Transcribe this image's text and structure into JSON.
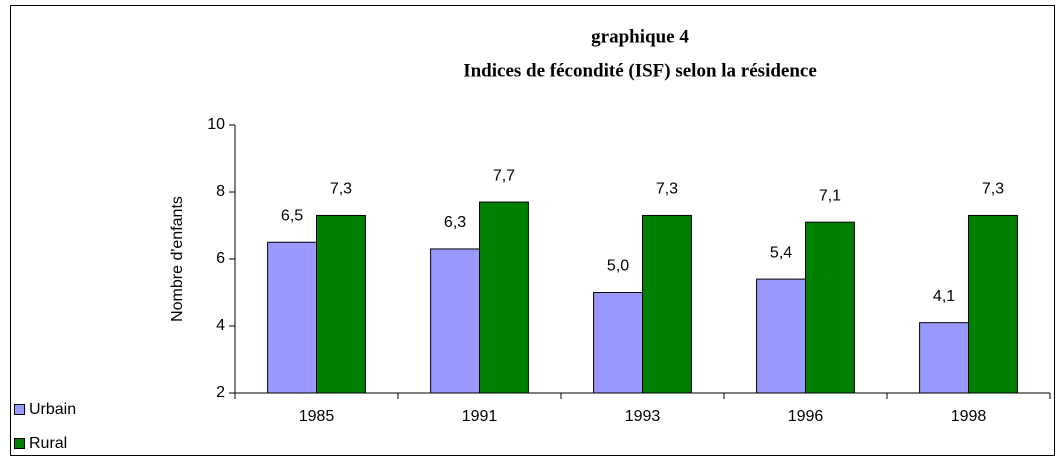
{
  "chart_data": {
    "type": "bar",
    "title": "graphique 4",
    "subtitle": "Indices de fécondité (ISF) selon la résidence",
    "y_label": "Nombre d'enfants",
    "categories": [
      "1985",
      "1991",
      "1993",
      "1996",
      "1998"
    ],
    "series": [
      {
        "name": "Urbain",
        "color": "#9999ff",
        "values": [
          6.5,
          6.3,
          5.0,
          5.4,
          4.1
        ],
        "value_labels": [
          "6,5",
          "6,3",
          "5,0",
          "5,4",
          "4,1"
        ]
      },
      {
        "name": "Rural",
        "color": "#008000",
        "values": [
          7.3,
          7.7,
          7.3,
          7.1,
          7.3
        ],
        "value_labels": [
          "7,3",
          "7,7",
          "7,3",
          "7,1",
          "7,3"
        ]
      }
    ],
    "ylim": [
      2,
      10
    ],
    "yticks": [
      2,
      4,
      6,
      8,
      10
    ],
    "grid": false,
    "legend": "bottom-left"
  }
}
